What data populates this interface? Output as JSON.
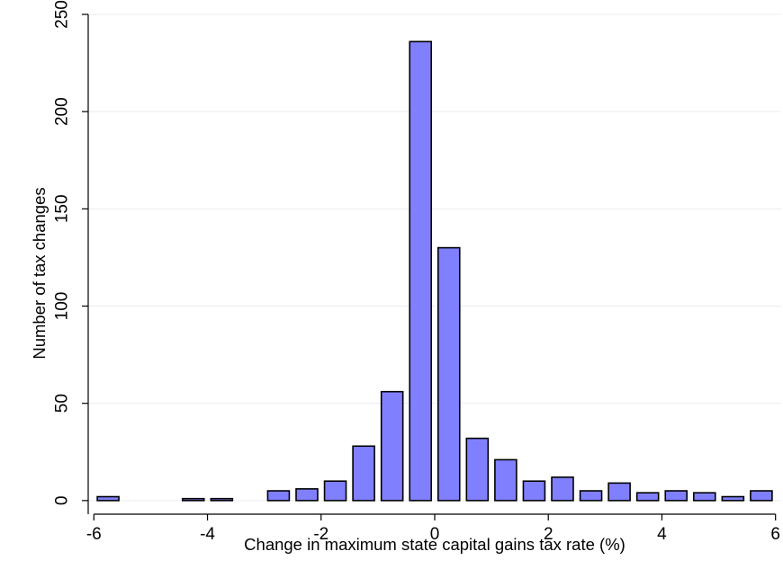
{
  "chart_data": {
    "type": "bar",
    "title": "",
    "xlabel": "Change in maximum state capital gains tax rate (%)",
    "ylabel": "Number of tax changes",
    "xlim": [
      -6.1,
      6.1
    ],
    "ylim": [
      -7,
      250
    ],
    "x_ticks": [
      -6,
      -4,
      -2,
      0,
      2,
      4,
      6
    ],
    "y_ticks": [
      0,
      50,
      100,
      150,
      200,
      250
    ],
    "grid": "horizontal",
    "bar_width": 0.38,
    "bar_fill": "#8080ff",
    "bar_stroke": "#000000",
    "x": [
      -5.75,
      -4.25,
      -3.75,
      -2.75,
      -2.25,
      -1.75,
      -1.25,
      -0.75,
      -0.25,
      0.25,
      0.75,
      1.25,
      1.75,
      2.25,
      2.75,
      3.25,
      3.75,
      4.25,
      4.75,
      5.25,
      5.75
    ],
    "values": [
      2,
      1,
      1,
      5,
      6,
      10,
      28,
      56,
      236,
      130,
      32,
      21,
      10,
      12,
      5,
      9,
      4,
      5,
      4,
      2,
      5
    ]
  }
}
